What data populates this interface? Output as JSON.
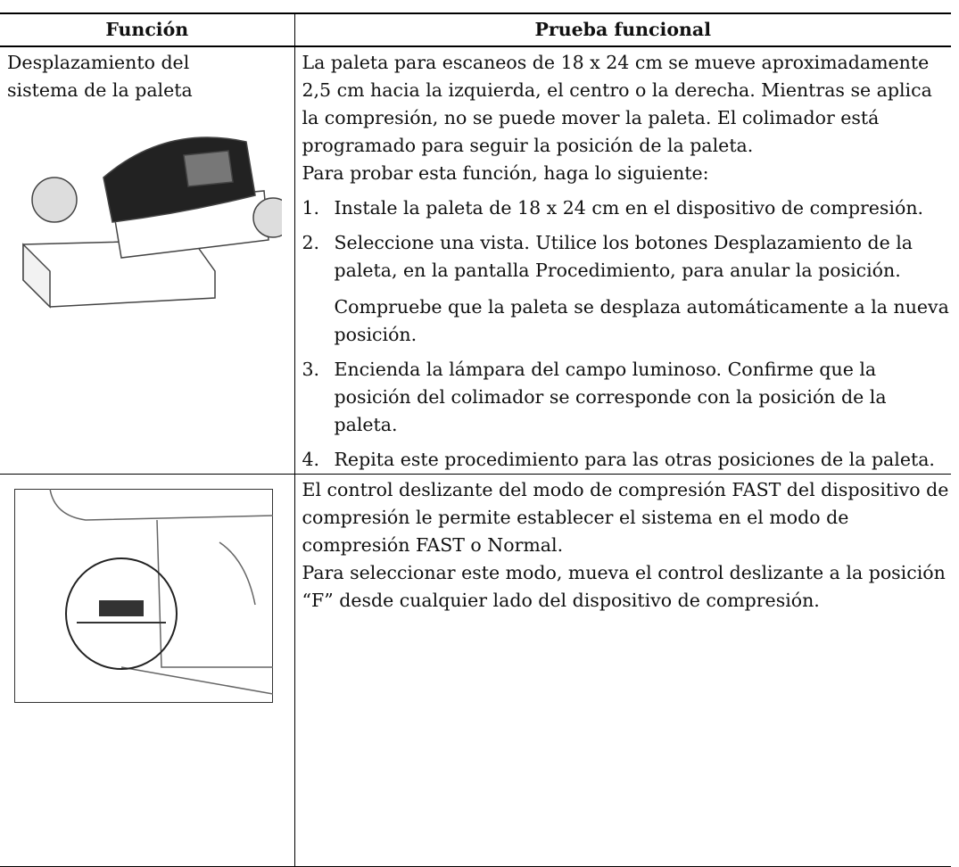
{
  "table": {
    "headers": [
      "Función",
      "Prueba funcional"
    ],
    "rows": [
      {
        "function": "Desplazamiento del sistema de la paleta",
        "test": {
          "paragraphs": [
            "La paleta para escaneos de 18 x 24 cm se mueve aproximadamente 2,5 cm hacia la izquierda, el centro o la derecha. Mientras se aplica la compresión, no se puede mover la paleta. El colimador está programado para seguir la posición de la paleta.",
            "Para probar esta función, haga lo siguiente:"
          ],
          "steps": [
            {
              "number": "1.",
              "text": [
                "Instale la paleta de 18 x 24 cm en el dispositivo de compresión."
              ]
            },
            {
              "number": "2.",
              "text": [
                "Seleccione una vista. Utilice los botones Desplazamiento de la paleta, en la pantalla Procedimiento, para anular la posición.",
                "Compruebe que la paleta se desplaza automáticamente a la nueva posición."
              ]
            },
            {
              "number": "3.",
              "text": [
                "Encienda la lámpara del campo luminoso. Confirme que la posición del colimador se corresponde con la posición de la paleta."
              ]
            },
            {
              "number": "4.",
              "text": [
                "Repita este procedimiento para las otras posiciones de la paleta."
              ]
            }
          ]
        }
      },
      {
        "test": {
          "paragraphs": [
            "El control deslizante del modo de compresión FAST del dispositivo de compresión le permite establecer el sistema en el modo de compresión FAST o Normal.",
            "Para seleccionar este modo, mueva el control deslizante a la posición “F” desde cualquier lado del dispositivo de compresión."
          ]
        }
      }
    ]
  }
}
